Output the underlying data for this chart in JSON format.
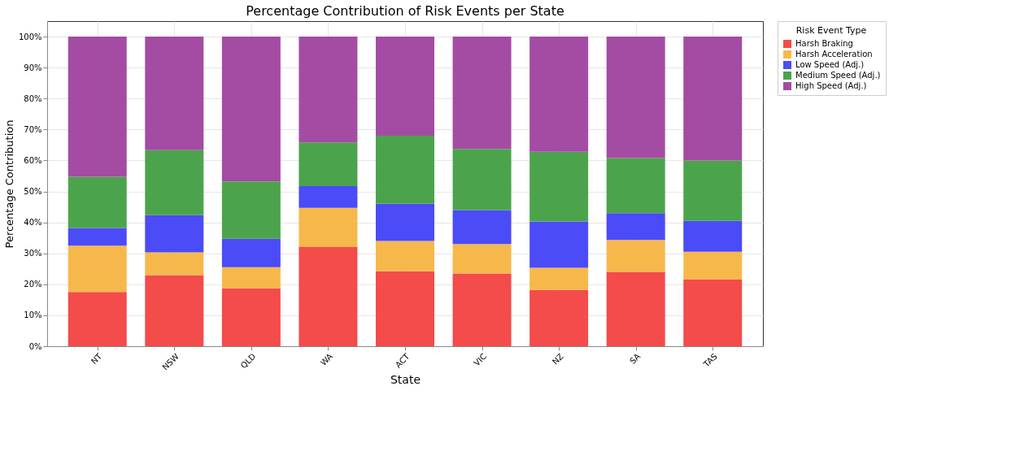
{
  "chart_data": {
    "type": "bar",
    "stacked": true,
    "title": "Percentage Contribution of Risk Events per State",
    "xlabel": "State",
    "ylabel": "Percentage Contribution",
    "legend_title": "Risk Event Type",
    "legend": "right",
    "grid": true,
    "categories": [
      "NT",
      "NSW",
      "QLD",
      "WA",
      "ACT",
      "VIC",
      "NZ",
      "SA",
      "TAS"
    ],
    "ylim": [
      0,
      105
    ],
    "yticks": [
      {
        "value": 0,
        "label": "0%"
      },
      {
        "value": 10,
        "label": "10%"
      },
      {
        "value": 20,
        "label": "20%"
      },
      {
        "value": 30,
        "label": "30%"
      },
      {
        "value": 40,
        "label": "40%"
      },
      {
        "value": 50,
        "label": "50%"
      },
      {
        "value": 60,
        "label": "60%"
      },
      {
        "value": 70,
        "label": "70%"
      },
      {
        "value": 80,
        "label": "80%"
      },
      {
        "value": 90,
        "label": "90%"
      },
      {
        "value": 100,
        "label": "100%"
      }
    ],
    "series": [
      {
        "name": "Harsh Braking",
        "color": "#f44b4b",
        "values": [
          17.5,
          23,
          18.7,
          32,
          24.2,
          23.5,
          18.2,
          24,
          21.5
        ]
      },
      {
        "name": "Harsh Acceleration",
        "color": "#f7b84b",
        "values": [
          15,
          7.3,
          6.8,
          12.7,
          9.8,
          9.5,
          7.1,
          10.3,
          9
        ]
      },
      {
        "name": "Low Speed (Adj.)",
        "color": "#4b4bf7",
        "values": [
          5.7,
          12,
          9.2,
          7,
          12,
          11,
          15,
          8.7,
          10
        ]
      },
      {
        "name": "Medium Speed (Adj.)",
        "color": "#4ba44b",
        "values": [
          16.5,
          21,
          18.5,
          14.1,
          22,
          19.7,
          22.5,
          17.8,
          19.5
        ]
      },
      {
        "name": "High Speed (Adj.)",
        "color": "#a44ba4",
        "values": [
          45.3,
          36.7,
          46.8,
          34.2,
          32,
          36.3,
          37.2,
          39.2,
          40
        ]
      }
    ]
  }
}
